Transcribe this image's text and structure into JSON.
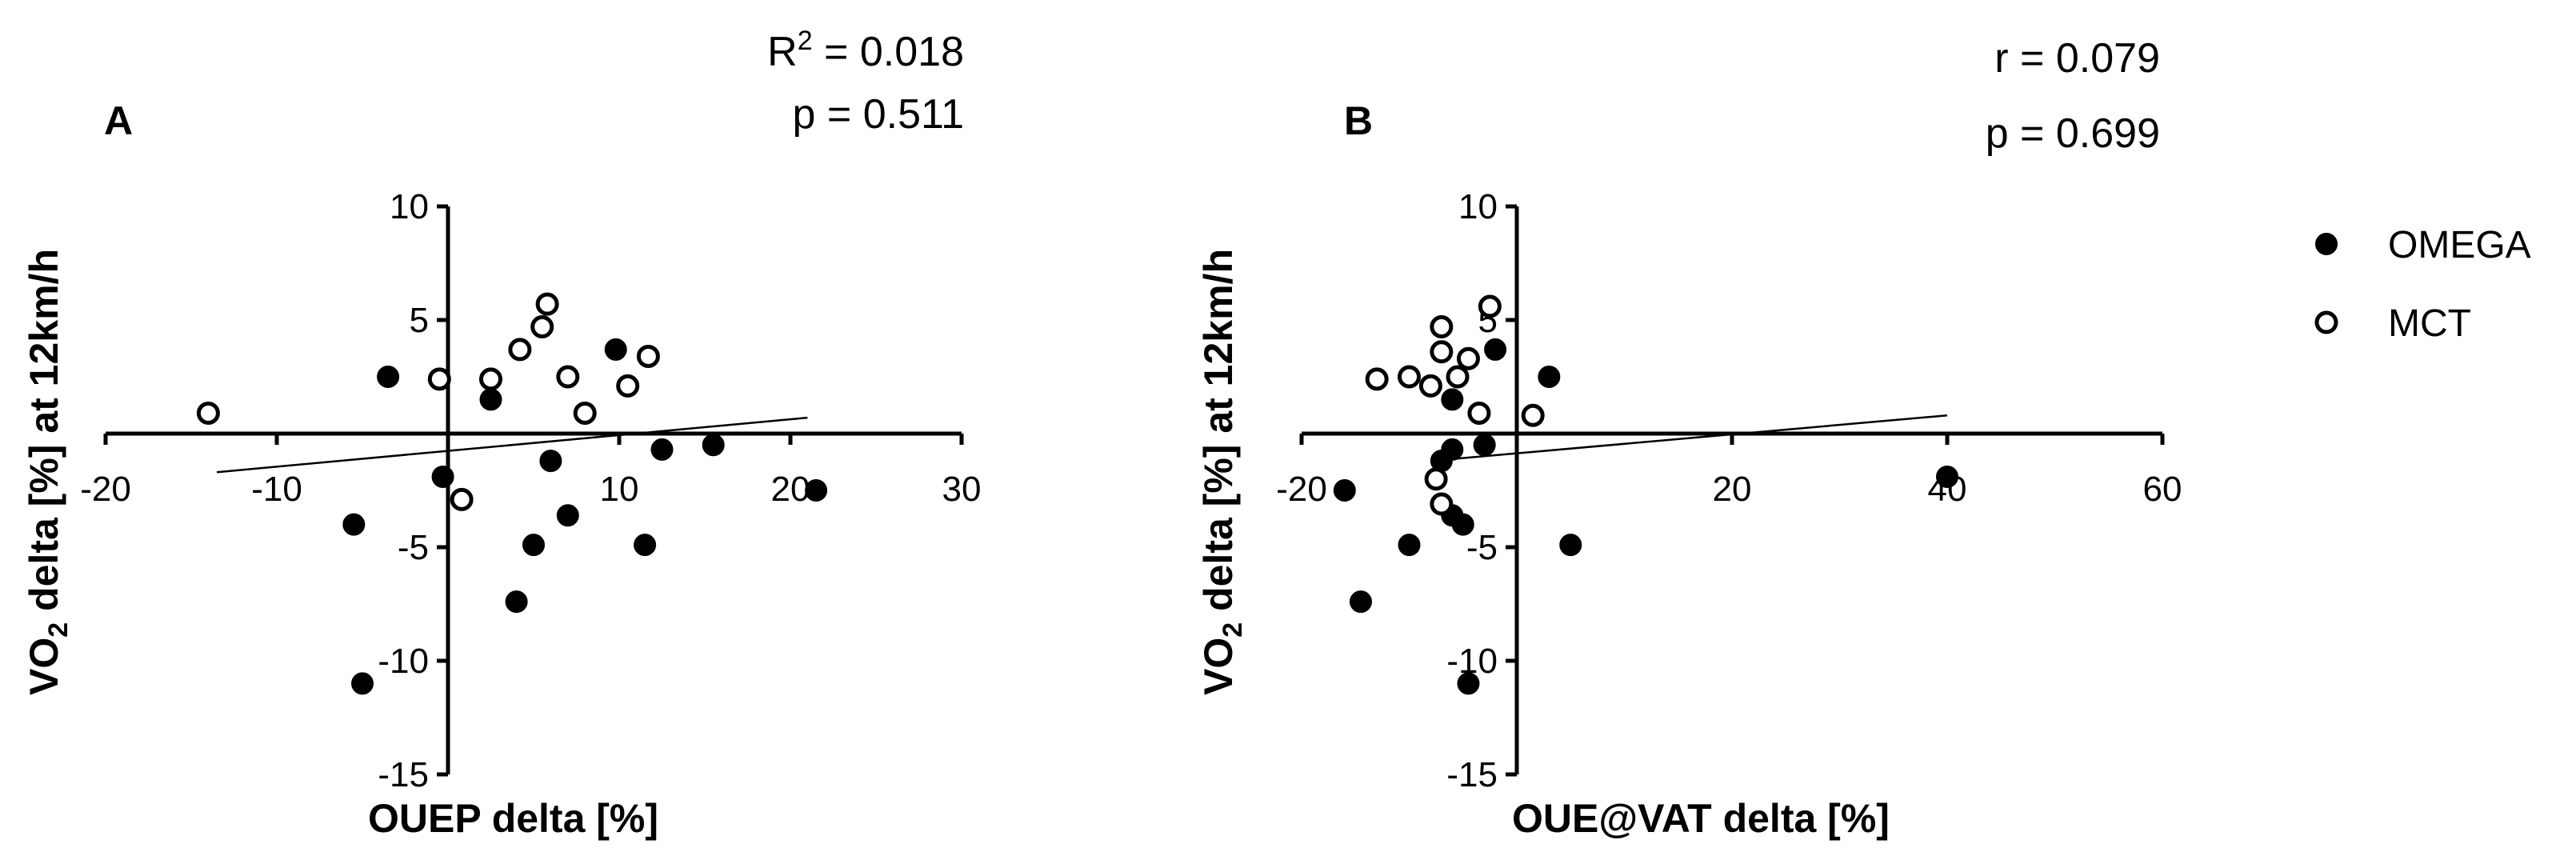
{
  "chart_data": [
    {
      "type": "scatter",
      "panel_label": "A",
      "stats": [
        "R² = 0.018",
        "p = 0.511"
      ],
      "xlabel": "OUEP delta [%]",
      "ylabel_parts": [
        "VO",
        "2",
        " delta [%] at 12km/h"
      ],
      "xlim": [
        -20,
        30
      ],
      "ylim": [
        -15,
        10
      ],
      "xticks": [
        -20,
        -10,
        0,
        10,
        20,
        30
      ],
      "xtick_labels": [
        "-20",
        "-10",
        "",
        "10",
        "20",
        "30"
      ],
      "yticks": [
        -15,
        -10,
        -5,
        0,
        5,
        10
      ],
      "ytick_labels": [
        "-15",
        "-10",
        "-5",
        "",
        "5",
        "10"
      ],
      "regression_line": {
        "x": [
          -13.5,
          21
        ],
        "y": [
          -1.7,
          0.7
        ]
      },
      "series": [
        {
          "name": "OMEGA",
          "marker": "filled",
          "points": [
            [
              -3.5,
              2.5
            ],
            [
              2.5,
              1.5
            ],
            [
              -0.3,
              -1.9
            ],
            [
              6,
              -1.2
            ],
            [
              9.8,
              3.7
            ],
            [
              12.5,
              -0.7
            ],
            [
              15.5,
              -0.5
            ],
            [
              21.5,
              -2.5
            ],
            [
              -5.5,
              -4
            ],
            [
              -5,
              -11
            ],
            [
              5,
              -4.9
            ],
            [
              4,
              -7.4
            ],
            [
              7,
              -3.6
            ],
            [
              11.5,
              -4.9
            ]
          ]
        },
        {
          "name": "MCT",
          "marker": "open",
          "points": [
            [
              -14,
              0.9
            ],
            [
              -0.5,
              2.4
            ],
            [
              2.5,
              2.4
            ],
            [
              4.2,
              3.7
            ],
            [
              5.5,
              4.7
            ],
            [
              5.8,
              5.7
            ],
            [
              7,
              2.5
            ],
            [
              8,
              0.9
            ],
            [
              10.5,
              2.1
            ],
            [
              11.7,
              3.4
            ],
            [
              0.8,
              -2.9
            ]
          ]
        }
      ]
    },
    {
      "type": "scatter",
      "panel_label": "B",
      "stats": [
        "r = 0.079",
        "p = 0.699"
      ],
      "xlabel": "OUE@VAT delta [%]",
      "ylabel_parts": [
        "VO",
        "2",
        " delta [%] at 12km/h"
      ],
      "xlim": [
        -20,
        60
      ],
      "ylim": [
        -15,
        10
      ],
      "xticks": [
        -20,
        0,
        20,
        40,
        60
      ],
      "xtick_labels": [
        "-20",
        "",
        "20",
        "40",
        "60"
      ],
      "yticks": [
        -15,
        -10,
        -5,
        0,
        5,
        10
      ],
      "ytick_labels": [
        "-15",
        "-10",
        "-5",
        "",
        "5",
        "10"
      ],
      "regression_line": {
        "x": [
          -8,
          40
        ],
        "y": [
          -1.2,
          0.8
        ]
      },
      "series": [
        {
          "name": "OMEGA",
          "marker": "filled",
          "points": [
            [
              -14.5,
              -7.4
            ],
            [
              -10,
              -4.9
            ],
            [
              -7,
              -1.2
            ],
            [
              -6,
              1.5
            ],
            [
              -6,
              -0.7
            ],
            [
              -6,
              -3.6
            ],
            [
              -5,
              -4
            ],
            [
              -4.5,
              -11
            ],
            [
              -3,
              -0.5
            ],
            [
              -2,
              3.7
            ],
            [
              3,
              2.5
            ],
            [
              -16,
              -2.5
            ],
            [
              5,
              -4.9
            ],
            [
              40,
              -1.9
            ]
          ]
        },
        {
          "name": "MCT",
          "marker": "open",
          "points": [
            [
              -13,
              2.4
            ],
            [
              -10,
              2.5
            ],
            [
              -8,
              2.1
            ],
            [
              -7,
              3.6
            ],
            [
              -7,
              4.7
            ],
            [
              -5.5,
              2.5
            ],
            [
              -4.5,
              3.3
            ],
            [
              -3.5,
              0.9
            ],
            [
              -2.5,
              5.6
            ],
            [
              -7.5,
              -2
            ],
            [
              -7,
              -3.1
            ],
            [
              1.5,
              0.8
            ]
          ]
        }
      ]
    }
  ],
  "legend": {
    "items": [
      {
        "label": "OMEGA",
        "marker": "filled"
      },
      {
        "label": "MCT",
        "marker": "open"
      }
    ]
  }
}
